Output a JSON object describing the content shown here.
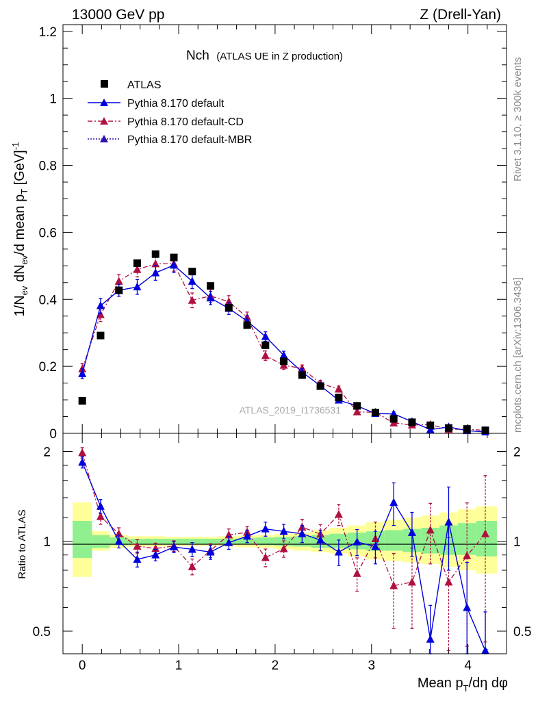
{
  "header": {
    "left": "13000 GeV pp",
    "right": "Z (Drell-Yan)"
  },
  "side_text": {
    "rivet": "Rivet 3.1.10, ≥ 300k events",
    "mcplots": "mcplots.cern.ch [arXiv:1306.3436]"
  },
  "colors": {
    "data": "#000000",
    "default": "#0000dd",
    "cd": "#b01040",
    "mbr": "#3010b0",
    "band_inner": "#90f090",
    "band_outer": "#ffff99"
  },
  "chart_data": [
    {
      "type": "scatter",
      "panel": "main",
      "title": "Nch",
      "subtitle": "(ATLAS UE in Z production)",
      "watermark": "ATLAS_2019_I1736531",
      "xlabel": "Mean p_T/dη dφ",
      "ylabel": "1/N_ev dN_ev/d mean p_T [GeV]^-1",
      "ylabel_parts": {
        "a": "1/N",
        "b": "ev",
        "c": " dN",
        "d": "ev",
        "e": "/d mean p",
        "f": "T",
        "g": " [GeV]",
        "h": "-1"
      },
      "xlim": [
        -0.2,
        4.4
      ],
      "ylim": [
        0,
        1.22
      ],
      "yticks": [
        0,
        0.2,
        0.4,
        0.6,
        0.8,
        1,
        1.2
      ],
      "ytick_labels": [
        "0",
        "0.2",
        "0.4",
        "0.6",
        "0.8",
        "1",
        "1.2"
      ],
      "legend": [
        {
          "label": "ATLAS",
          "key": "data"
        },
        {
          "label": "Pythia 8.170 default",
          "key": "default"
        },
        {
          "label": "Pythia 8.170 default-CD",
          "key": "cd"
        },
        {
          "label": "Pythia 8.170 default-MBR",
          "key": "mbr"
        }
      ],
      "x": [
        0,
        0.19,
        0.38,
        0.57,
        0.76,
        0.95,
        1.14,
        1.33,
        1.52,
        1.71,
        1.9,
        2.09,
        2.28,
        2.47,
        2.66,
        2.85,
        3.04,
        3.23,
        3.42,
        3.61,
        3.8,
        3.99,
        4.18
      ],
      "series": [
        {
          "name": "ATLAS",
          "values": [
            0.097,
            0.292,
            0.427,
            0.508,
            0.535,
            0.525,
            0.483,
            0.44,
            0.375,
            0.323,
            0.263,
            0.215,
            0.174,
            0.141,
            0.107,
            0.082,
            0.062,
            0.043,
            0.033,
            0.024,
            0.016,
            0.013,
            0.009
          ]
        },
        {
          "name": "Pythia 8.170 default",
          "values": [
            0.178,
            0.381,
            0.427,
            0.437,
            0.479,
            0.502,
            0.454,
            0.404,
            0.373,
            0.335,
            0.289,
            0.233,
            0.183,
            0.142,
            0.099,
            0.082,
            0.059,
            0.058,
            0.035,
            0.011,
            0.019,
            0.008,
            0.004
          ]
        },
        {
          "name": "Pythia 8.170 default-CD",
          "values": [
            0.192,
            0.354,
            0.454,
            0.489,
            0.506,
            0.506,
            0.397,
            0.41,
            0.393,
            0.346,
            0.232,
            0.203,
            0.194,
            0.149,
            0.132,
            0.064,
            0.063,
            0.031,
            0.025,
            0.026,
            0.012,
            0.012,
            0.009
          ]
        }
      ],
      "errors": {
        "default": [
          0.015,
          0.022,
          0.018,
          0.022,
          0.022,
          0.022,
          0.022,
          0.02,
          0.018,
          0.016,
          0.014,
          0.012,
          0.01,
          0.009,
          0.008,
          0.007,
          0.006,
          0.006,
          0.005,
          0.004,
          0.004,
          0.003,
          0.003
        ],
        "cd": [
          0.017,
          0.02,
          0.02,
          0.022,
          0.022,
          0.022,
          0.022,
          0.02,
          0.018,
          0.016,
          0.014,
          0.012,
          0.01,
          0.009,
          0.009,
          0.007,
          0.006,
          0.006,
          0.005,
          0.005,
          0.004,
          0.004,
          0.004
        ]
      }
    },
    {
      "type": "scatter",
      "panel": "ratio",
      "ylabel": "Ratio to ATLAS",
      "xlim": [
        -0.2,
        4.4
      ],
      "ylim": [
        0.42,
        2.3
      ],
      "yscale": "log",
      "yticks": [
        0.5,
        1,
        2
      ],
      "ytick_labels": [
        "0.5",
        "1",
        "2"
      ],
      "xticks": [
        0,
        1,
        2,
        3,
        4
      ],
      "xtick_labels": [
        "0",
        "1",
        "2",
        "3",
        "4"
      ],
      "band_edges": [
        -0.1,
        0.1,
        0.285,
        0.475,
        0.665,
        0.855,
        1.045,
        1.235,
        1.425,
        1.615,
        1.805,
        1.995,
        2.185,
        2.375,
        2.565,
        2.755,
        2.945,
        3.135,
        3.325,
        3.515,
        3.705,
        3.895,
        4.085,
        4.3
      ],
      "band_inner": [
        [
          0.88,
          1.17
        ],
        [
          0.95,
          1.05
        ],
        [
          0.97,
          1.03
        ],
        [
          0.98,
          1.02
        ],
        [
          0.98,
          1.02
        ],
        [
          0.98,
          1.02
        ],
        [
          0.98,
          1.02
        ],
        [
          0.98,
          1.02
        ],
        [
          0.98,
          1.02
        ],
        [
          0.975,
          1.025
        ],
        [
          0.97,
          1.03
        ],
        [
          0.965,
          1.035
        ],
        [
          0.96,
          1.04
        ],
        [
          0.95,
          1.05
        ],
        [
          0.95,
          1.06
        ],
        [
          0.94,
          1.07
        ],
        [
          0.93,
          1.08
        ],
        [
          0.93,
          1.09
        ],
        [
          0.92,
          1.1
        ],
        [
          0.91,
          1.11
        ],
        [
          0.9,
          1.13
        ],
        [
          0.9,
          1.15
        ],
        [
          0.89,
          1.17
        ]
      ],
      "band_outer": [
        [
          0.76,
          1.35
        ],
        [
          0.93,
          1.08
        ],
        [
          0.95,
          1.05
        ],
        [
          0.96,
          1.04
        ],
        [
          0.96,
          1.04
        ],
        [
          0.965,
          1.035
        ],
        [
          0.965,
          1.035
        ],
        [
          0.965,
          1.035
        ],
        [
          0.96,
          1.04
        ],
        [
          0.955,
          1.045
        ],
        [
          0.95,
          1.05
        ],
        [
          0.94,
          1.06
        ],
        [
          0.93,
          1.07
        ],
        [
          0.92,
          1.09
        ],
        [
          0.91,
          1.11
        ],
        [
          0.89,
          1.13
        ],
        [
          0.87,
          1.16
        ],
        [
          0.86,
          1.18
        ],
        [
          0.85,
          1.2
        ],
        [
          0.84,
          1.22
        ],
        [
          0.82,
          1.25
        ],
        [
          0.8,
          1.28
        ],
        [
          0.78,
          1.31
        ]
      ],
      "series": [
        {
          "name": "Pythia 8.170 default",
          "values": [
            1.84,
            1.31,
            1.0,
            0.87,
            0.9,
            0.957,
            0.94,
            0.92,
            0.99,
            1.04,
            1.1,
            1.08,
            1.06,
            1.01,
            0.92,
            0.995,
            0.96,
            1.35,
            1.07,
            0.47,
            1.16,
            0.6,
            0.43
          ]
        },
        {
          "name": "Pythia 8.170 default-CD",
          "values": [
            1.98,
            1.21,
            1.06,
            0.963,
            0.946,
            0.964,
            0.822,
            0.932,
            1.05,
            1.072,
            0.882,
            0.944,
            1.115,
            1.057,
            1.23,
            0.78,
            1.02,
            0.71,
            0.73,
            1.09,
            0.73,
            0.895,
            1.06
          ]
        }
      ],
      "errors": {
        "default": [
          0.08,
          0.07,
          0.05,
          0.05,
          0.04,
          0.04,
          0.05,
          0.05,
          0.05,
          0.05,
          0.06,
          0.06,
          0.07,
          0.08,
          0.09,
          0.1,
          0.12,
          0.22,
          0.18,
          0.14,
          0.36,
          0.25,
          0.15
        ],
        "cd": [
          0.08,
          0.07,
          0.05,
          0.05,
          0.04,
          0.04,
          0.05,
          0.05,
          0.05,
          0.05,
          0.06,
          0.06,
          0.07,
          0.08,
          0.1,
          0.1,
          0.14,
          0.2,
          0.22,
          0.25,
          0.3,
          0.45,
          0.6
        ]
      }
    }
  ]
}
